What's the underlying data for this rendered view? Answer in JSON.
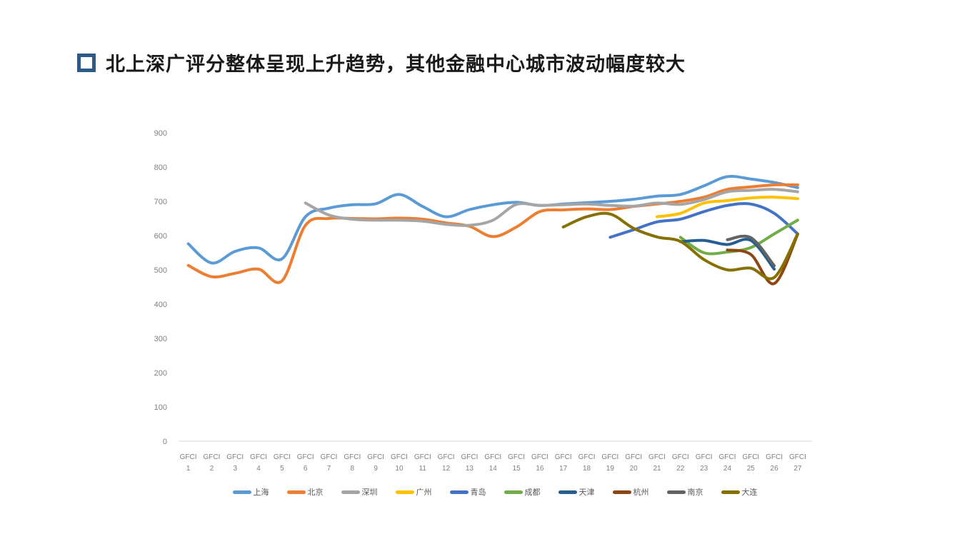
{
  "page": {
    "background": "#ffffff"
  },
  "title": {
    "bullet_icon": "hollow-square-bullet",
    "bullet_color": "#2e5a88",
    "text": "北上深广评分整体呈现上升趋势，其他金融中心城市波动幅度较大"
  },
  "chart_data": {
    "type": "line",
    "smooth": true,
    "grid": false,
    "legend_position": "bottom",
    "title": "",
    "xlabel": "",
    "ylabel": "",
    "ylim": [
      0,
      900
    ],
    "ytick_step": 100,
    "yticks": [
      0,
      100,
      200,
      300,
      400,
      500,
      600,
      700,
      800,
      900
    ],
    "x_label_top": "GFCI",
    "categories": [
      "GFCI 1",
      "GFCI 2",
      "GFCI 3",
      "GFCI 4",
      "GFCI 5",
      "GFCI 6",
      "GFCI 7",
      "GFCI 8",
      "GFCI 9",
      "GFCI 10",
      "GFCI 11",
      "GFCI 12",
      "GFCI 13",
      "GFCI 14",
      "GFCI 15",
      "GFCI 16",
      "GFCI 17",
      "GFCI 18",
      "GFCI 19",
      "GFCI 20",
      "GFCI 21",
      "GFCI 22",
      "GFCI 23",
      "GFCI 24",
      "GFCI 25",
      "GFCI 26",
      "GFCI 27"
    ],
    "axis_color": "#d9d9d9",
    "tick_label_color": "#7f7f7f",
    "series": [
      {
        "id": "shanghai",
        "name": "上海",
        "color": "#5b9bd5",
        "values": [
          576,
          520,
          554,
          564,
          532,
          655,
          680,
          690,
          693,
          720,
          685,
          655,
          676,
          690,
          697,
          688,
          692,
          696,
          700,
          706,
          715,
          720,
          745,
          772,
          765,
          755,
          740
        ]
      },
      {
        "id": "beijing",
        "name": "北京",
        "color": "#ed7d31",
        "values": [
          513,
          480,
          490,
          502,
          468,
          630,
          650,
          650,
          649,
          651,
          648,
          637,
          627,
          597,
          625,
          670,
          675,
          678,
          676,
          685,
          692,
          700,
          712,
          735,
          742,
          748,
          748
        ]
      },
      {
        "id": "shenzhen",
        "name": "深圳",
        "color": "#a5a5a5",
        "values": [
          null,
          null,
          null,
          null,
          null,
          695,
          660,
          648,
          645,
          645,
          642,
          633,
          630,
          645,
          691,
          688,
          690,
          692,
          688,
          686,
          695,
          691,
          705,
          728,
          732,
          735,
          728
        ]
      },
      {
        "id": "guangzhou",
        "name": "广州",
        "color": "#ffc000",
        "values": [
          null,
          null,
          null,
          null,
          null,
          null,
          null,
          null,
          null,
          null,
          null,
          null,
          null,
          null,
          null,
          null,
          null,
          null,
          null,
          null,
          655,
          665,
          695,
          702,
          710,
          712,
          708
        ]
      },
      {
        "id": "qingdao",
        "name": "青岛",
        "color": "#4472c4",
        "values": [
          null,
          null,
          null,
          null,
          null,
          null,
          null,
          null,
          null,
          null,
          null,
          null,
          null,
          null,
          null,
          null,
          null,
          null,
          595,
          617,
          640,
          648,
          670,
          688,
          692,
          665,
          605
        ]
      },
      {
        "id": "chengdu",
        "name": "成都",
        "color": "#70ad47",
        "values": [
          null,
          null,
          null,
          null,
          null,
          null,
          null,
          null,
          null,
          null,
          null,
          null,
          null,
          null,
          null,
          null,
          null,
          null,
          null,
          null,
          null,
          595,
          550,
          552,
          565,
          605,
          645
        ]
      },
      {
        "id": "tianjin",
        "name": "天津",
        "color": "#255e91",
        "values": [
          null,
          null,
          null,
          null,
          null,
          null,
          null,
          null,
          null,
          null,
          null,
          null,
          null,
          null,
          null,
          null,
          null,
          null,
          null,
          null,
          null,
          582,
          586,
          574,
          586,
          502,
          null
        ]
      },
      {
        "id": "hangzhou",
        "name": "杭州",
        "color": "#8f4512",
        "values": [
          null,
          null,
          null,
          null,
          null,
          null,
          null,
          null,
          null,
          null,
          null,
          null,
          null,
          null,
          null,
          null,
          null,
          null,
          null,
          null,
          null,
          null,
          null,
          558,
          545,
          460,
          604
        ]
      },
      {
        "id": "nanjing",
        "name": "南京",
        "color": "#636363",
        "values": [
          null,
          null,
          null,
          null,
          null,
          null,
          null,
          null,
          null,
          null,
          null,
          null,
          null,
          null,
          null,
          null,
          null,
          null,
          null,
          null,
          null,
          null,
          null,
          588,
          594,
          512,
          null
        ]
      },
      {
        "id": "dalian",
        "name": "大连",
        "color": "#867000",
        "values": [
          null,
          null,
          null,
          null,
          null,
          null,
          null,
          null,
          null,
          null,
          null,
          null,
          null,
          null,
          null,
          null,
          625,
          655,
          663,
          621,
          596,
          583,
          530,
          500,
          505,
          478,
          605
        ]
      }
    ]
  }
}
